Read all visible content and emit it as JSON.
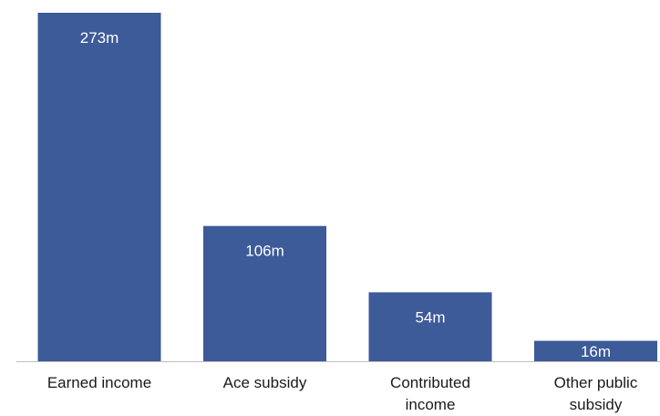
{
  "chart_data": {
    "type": "bar",
    "categories": [
      [
        "Earned income"
      ],
      [
        "Ace subsidy"
      ],
      [
        "Contributed",
        "income"
      ],
      [
        "Other public",
        "subsidy"
      ]
    ],
    "values": [
      273,
      106,
      54,
      16
    ],
    "data_labels": [
      "273m",
      "106m",
      "54m",
      "16m"
    ],
    "title": "",
    "xlabel": "",
    "ylabel": "",
    "ylim": [
      0,
      273
    ],
    "grid": false,
    "legend": "none",
    "colors": {
      "bar": "#3d5a99",
      "axis": "#bfbfbf",
      "data_label": "#ffffff",
      "category_label": "#1a1a1a"
    }
  }
}
